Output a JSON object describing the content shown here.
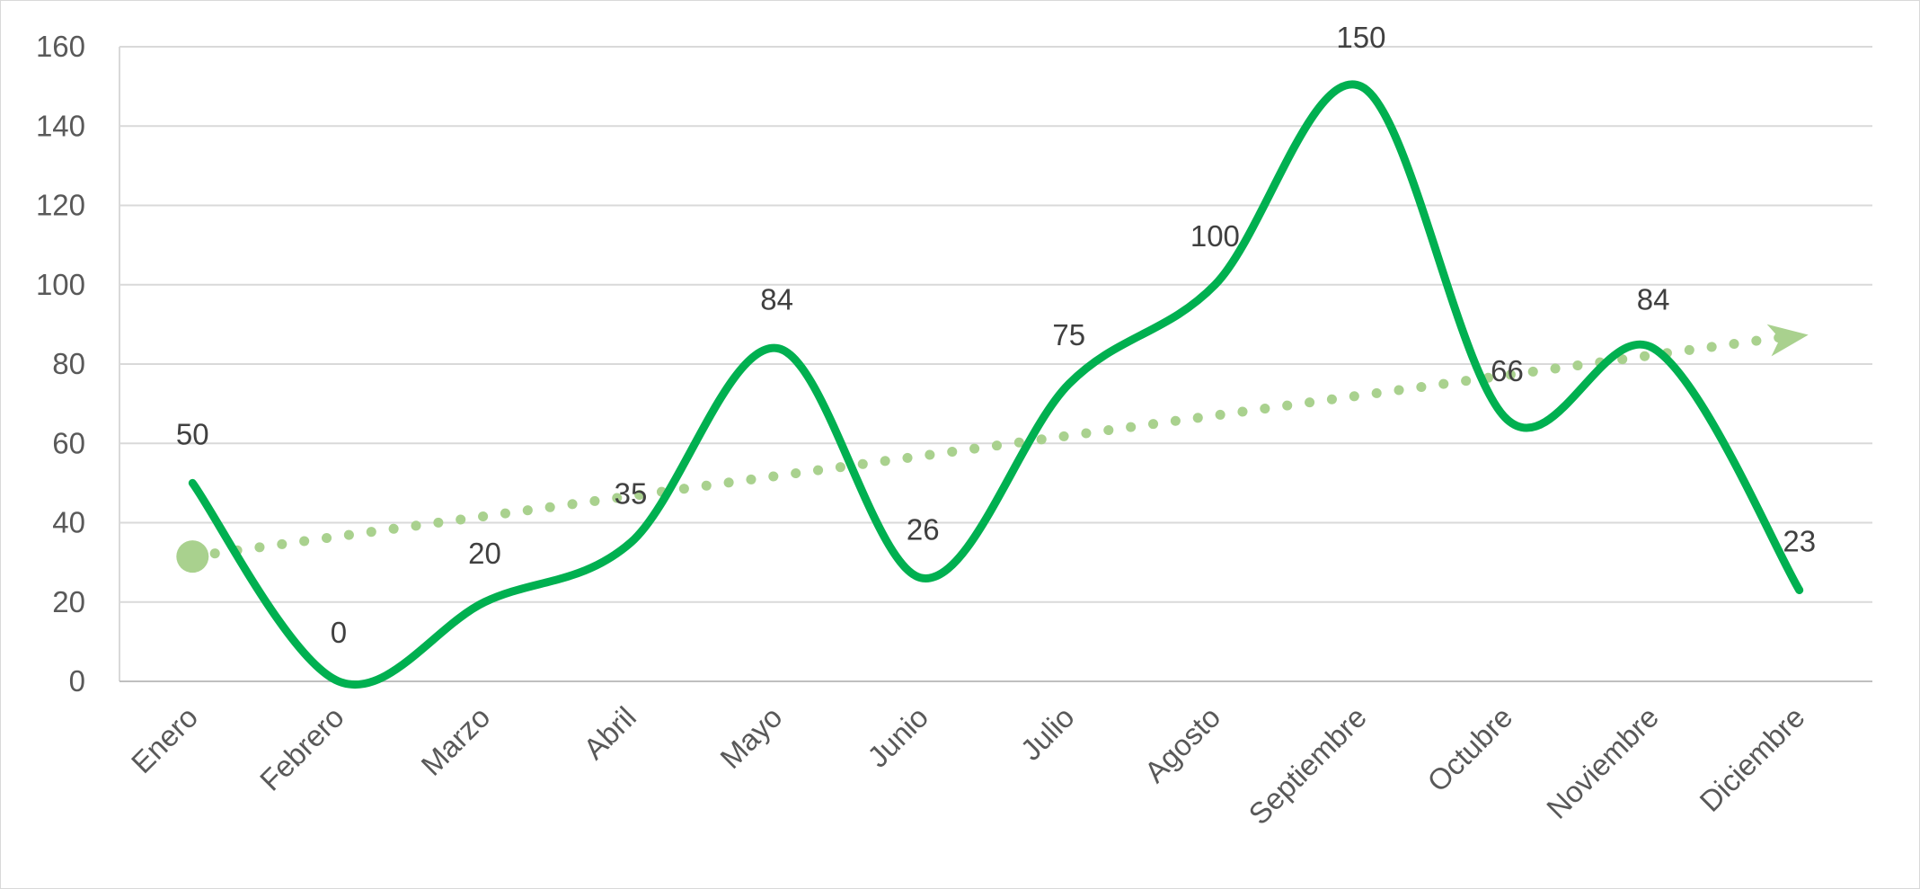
{
  "chart_data": {
    "type": "line",
    "categories": [
      "Enero",
      "Febrero",
      "Marzo",
      "Abril",
      "Mayo",
      "Junio",
      "Julio",
      "Agosto",
      "Septiembre",
      "Octubre",
      "Noviembre",
      "Diciembre"
    ],
    "series": [
      {
        "values": [
          50,
          0,
          20,
          35,
          84,
          26,
          75,
          100,
          150,
          66,
          84,
          23
        ],
        "color": "#00b050",
        "smooth": true,
        "data_labels": true
      }
    ],
    "trendline": {
      "type": "linear",
      "style": "dotted",
      "color": "#a9d18e",
      "start_marker": "circle",
      "end_marker": "arrow"
    },
    "ylim": [
      0,
      160
    ],
    "yticks": [
      0,
      20,
      40,
      60,
      80,
      100,
      120,
      140,
      160
    ],
    "grid": {
      "horizontal": true,
      "color": "#d9d9d9"
    },
    "title": "",
    "xlabel": "",
    "ylabel": "",
    "legend": "none"
  }
}
